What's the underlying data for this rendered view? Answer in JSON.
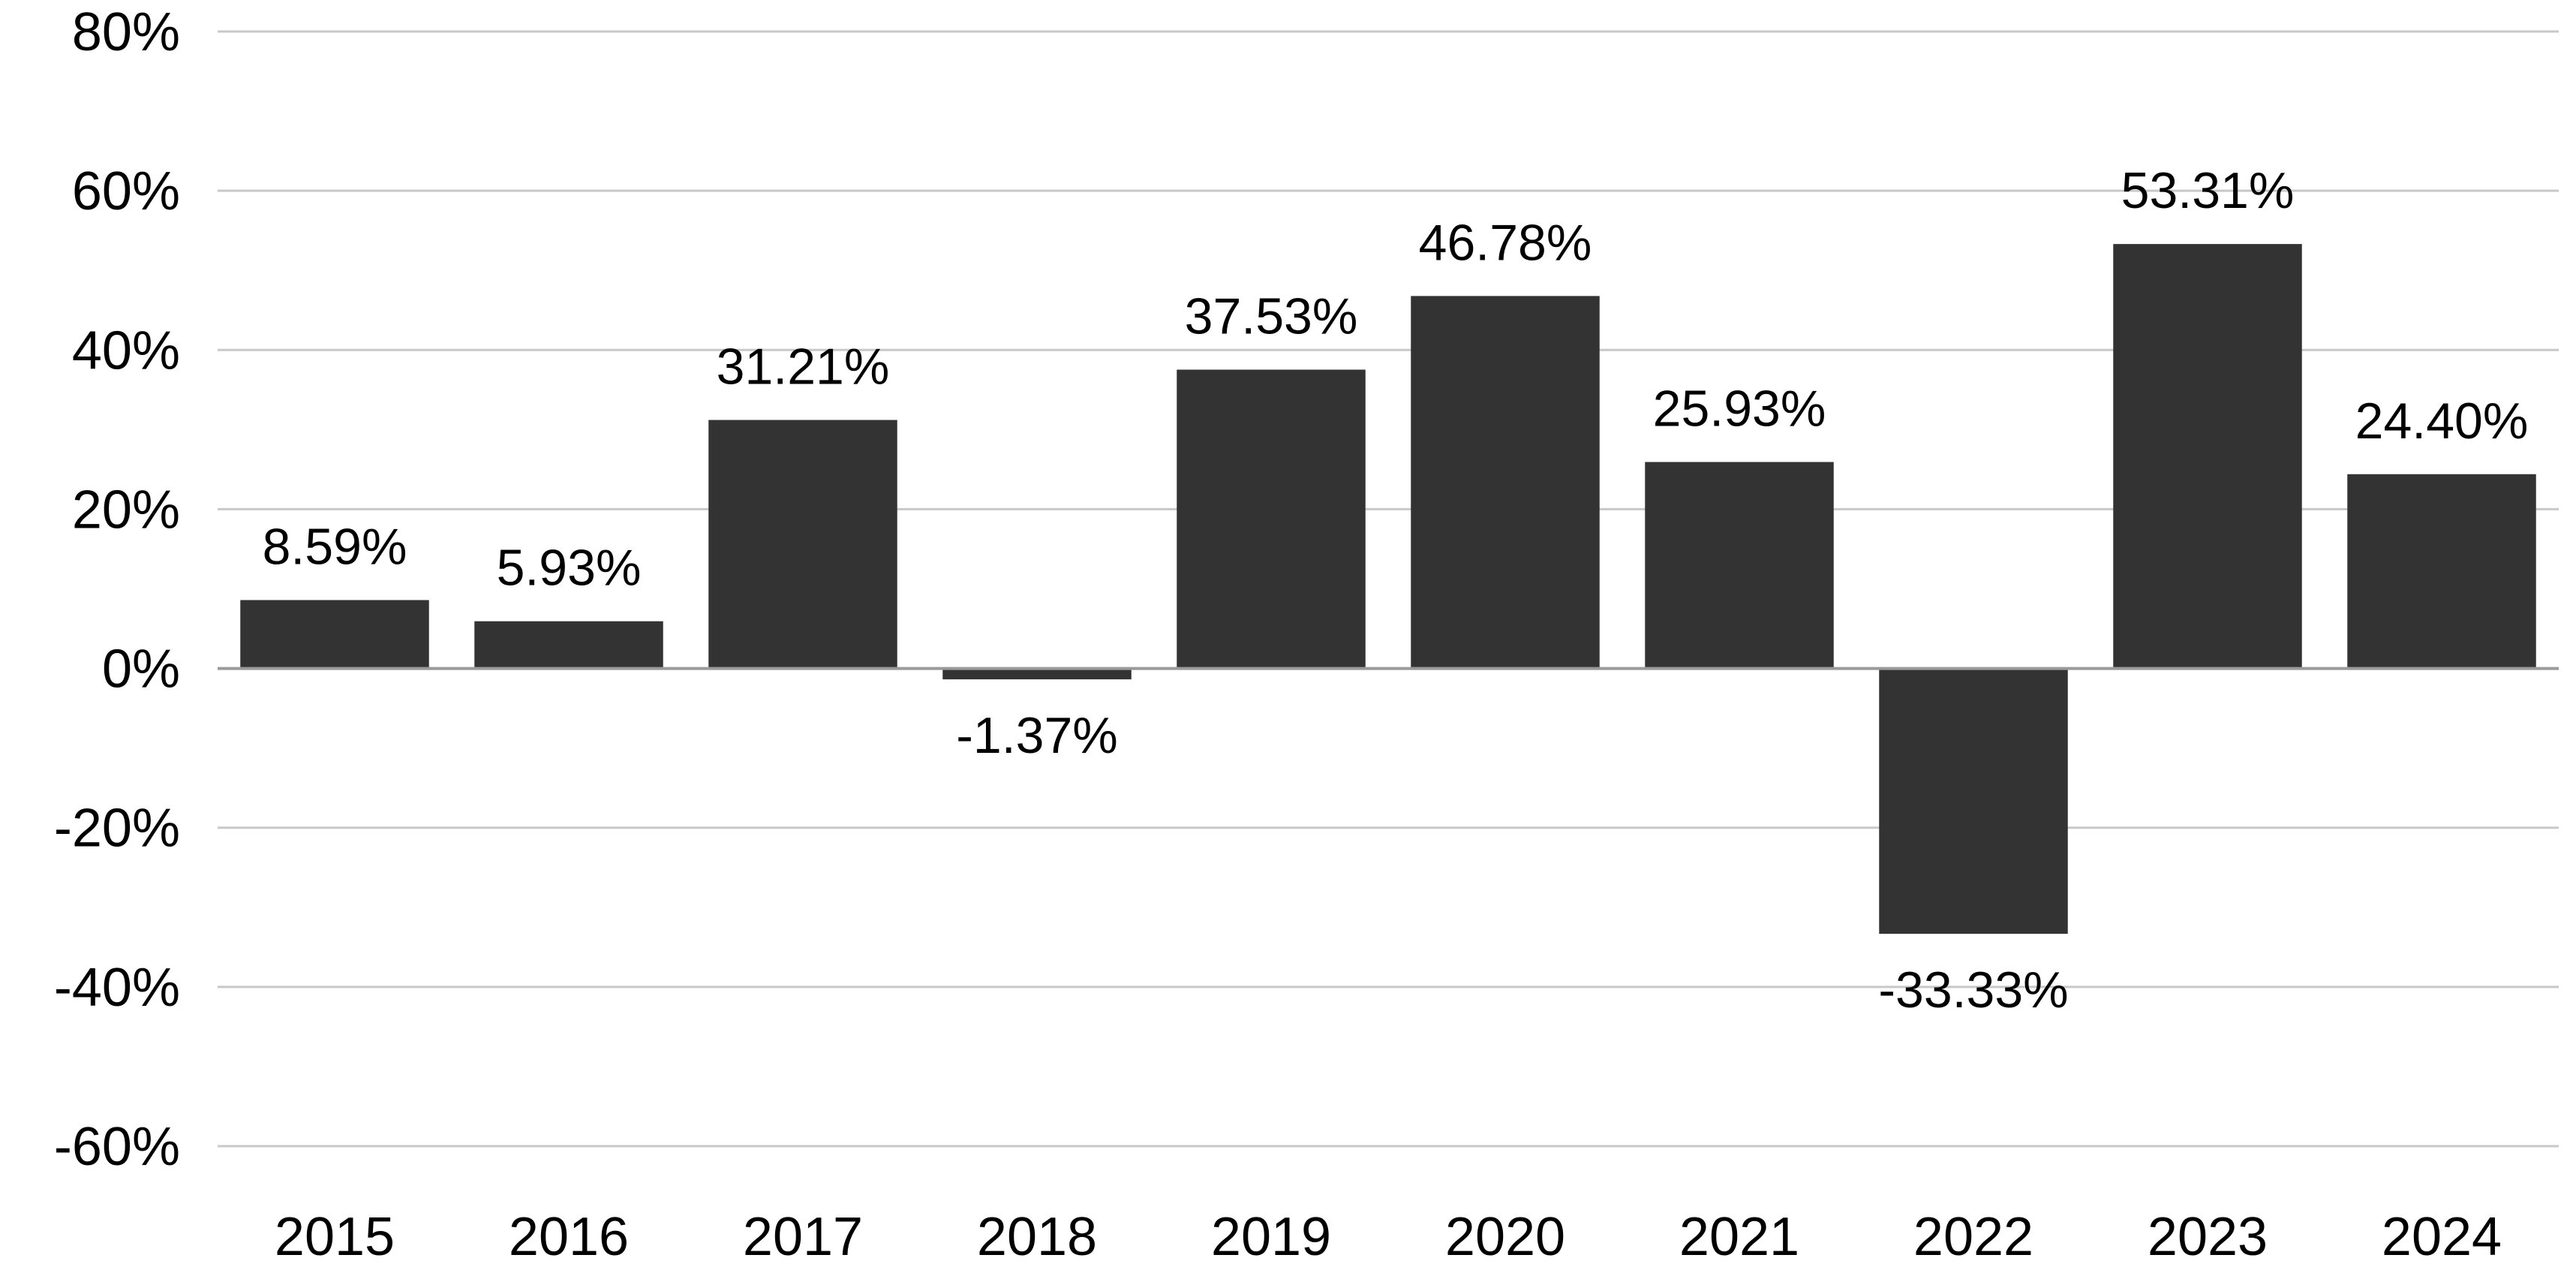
{
  "chart_data": {
    "type": "bar",
    "categories": [
      "2015",
      "2016",
      "2017",
      "2018",
      "2019",
      "2020",
      "2021",
      "2022",
      "2023",
      "2024"
    ],
    "values": [
      8.59,
      5.93,
      31.21,
      -1.37,
      37.53,
      46.78,
      25.93,
      -33.33,
      53.31,
      24.4
    ],
    "data_labels": [
      "8.59%",
      "5.93%",
      "31.21%",
      "-1.37%",
      "37.53%",
      "46.78%",
      "25.93%",
      "-33.33%",
      "53.31%",
      "24.40%"
    ],
    "y_ticks": [
      80,
      60,
      40,
      20,
      0,
      -20,
      -40,
      -60
    ],
    "y_tick_labels": [
      "80%",
      "60%",
      "40%",
      "20%",
      "0%",
      "-20%",
      "-40%",
      "-60%"
    ],
    "ylim": [
      -60,
      80
    ],
    "title": "",
    "xlabel": "",
    "ylabel": "",
    "grid": true,
    "legend": "none",
    "colors": {
      "bar": "#333333",
      "grid": "#c8c8c8",
      "zero_line": "#9a9a9a",
      "text": "#000000"
    }
  }
}
